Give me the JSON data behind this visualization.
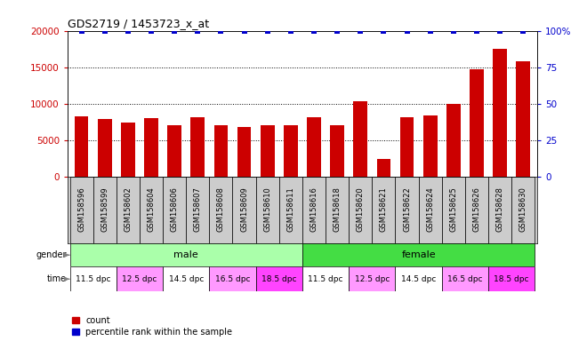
{
  "title": "GDS2719 / 1453723_x_at",
  "samples": [
    "GSM158596",
    "GSM158599",
    "GSM158602",
    "GSM158604",
    "GSM158606",
    "GSM158607",
    "GSM158608",
    "GSM158609",
    "GSM158610",
    "GSM158611",
    "GSM158616",
    "GSM158618",
    "GSM158620",
    "GSM158621",
    "GSM158622",
    "GSM158624",
    "GSM158625",
    "GSM158626",
    "GSM158628",
    "GSM158630"
  ],
  "counts": [
    8300,
    7900,
    7400,
    8000,
    7000,
    8200,
    7000,
    6800,
    7100,
    7000,
    8100,
    7000,
    10400,
    2500,
    8100,
    8400,
    10000,
    14700,
    17500,
    15800
  ],
  "percentile": [
    100,
    100,
    100,
    100,
    100,
    100,
    100,
    100,
    100,
    100,
    100,
    100,
    100,
    100,
    100,
    100,
    100,
    100,
    100,
    100
  ],
  "bar_color": "#cc0000",
  "percentile_color": "#0000cc",
  "ylim_left": [
    0,
    20000
  ],
  "ylim_right": [
    0,
    100
  ],
  "yticks_left": [
    0,
    5000,
    10000,
    15000,
    20000
  ],
  "yticks_right": [
    0,
    25,
    50,
    75,
    100
  ],
  "gender_male_label": "male",
  "gender_female_label": "female",
  "gender_male_color": "#aaffaa",
  "gender_female_color": "#44dd44",
  "time_colors": {
    "11.5 dpc": "#ffffff",
    "12.5 dpc": "#ff99ff",
    "14.5 dpc": "#ffffff",
    "16.5 dpc": "#ff99ff",
    "18.5 dpc": "#ff44ff"
  },
  "time_group_defs": [
    [
      "11.5 dpc",
      0,
      1
    ],
    [
      "12.5 dpc",
      2,
      3
    ],
    [
      "14.5 dpc",
      4,
      5
    ],
    [
      "16.5 dpc",
      6,
      7
    ],
    [
      "18.5 dpc",
      8,
      9
    ],
    [
      "11.5 dpc",
      10,
      11
    ],
    [
      "12.5 dpc",
      12,
      13
    ],
    [
      "14.5 dpc",
      14,
      15
    ],
    [
      "16.5 dpc",
      16,
      17
    ],
    [
      "18.5 dpc",
      18,
      19
    ]
  ],
  "legend_count_label": "count",
  "legend_percentile_label": "percentile rank within the sample",
  "sample_label_bg": "#cccccc",
  "background_color": "#ffffff"
}
